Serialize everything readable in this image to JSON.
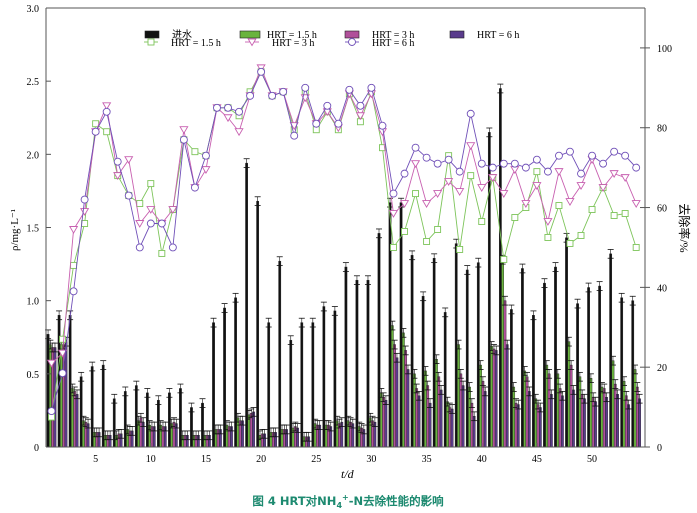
{
  "chart_data": {
    "type": "bar+line",
    "title": "",
    "caption": "图 4 HRT对NH4+-N去除性能的影响",
    "caption_parts": {
      "prefix": "图 4 HRT对NH",
      "sub": "4",
      "sup": "+",
      "suffix": "-N去除性能的影响"
    },
    "xlabel": "t/d",
    "ylabel": "ρ/mg·L⁻¹",
    "ylabel_right": "去除率/%",
    "xlim": [
      0.5,
      54.8
    ],
    "ylim": [
      0,
      3.0
    ],
    "ylim_right": [
      0,
      110
    ],
    "xticks": [
      5,
      10,
      15,
      20,
      25,
      30,
      35,
      40,
      45,
      50
    ],
    "yticks": [
      "0",
      "0.5",
      "1.0",
      "1.5",
      "2.0",
      "2.5",
      "3.0"
    ],
    "yticks_right": [
      "0",
      "20",
      "40",
      "60",
      "80",
      "100"
    ],
    "error_bar": 0.03,
    "legend_position": "top",
    "days": [
      1,
      2,
      3,
      4,
      5,
      6,
      7,
      8,
      9,
      10,
      11,
      12,
      13,
      14,
      15,
      16,
      17,
      18,
      19,
      20,
      21,
      22,
      23,
      24,
      25,
      26,
      27,
      28,
      29,
      30,
      31,
      32,
      33,
      34,
      35,
      36,
      37,
      38,
      39,
      40,
      41,
      42,
      43,
      44,
      45,
      46,
      47,
      48,
      49,
      50,
      51,
      52,
      53,
      54
    ],
    "bar_series": [
      {
        "name": "进水",
        "color": "#111111",
        "values": [
          0.77,
          0.9,
          0.9,
          0.48,
          0.55,
          0.56,
          0.33,
          0.38,
          0.42,
          0.37,
          0.32,
          0.37,
          0.4,
          0.27,
          0.3,
          0.85,
          0.95,
          1.02,
          1.94,
          1.68,
          0.85,
          1.27,
          0.73,
          0.85,
          0.85,
          0.96,
          0.93,
          1.23,
          1.14,
          1.14,
          1.46,
          1.67,
          1.67,
          1.31,
          1.03,
          1.29,
          0.92,
          1.39,
          1.21,
          1.26,
          2.15,
          2.45,
          0.94,
          1.22,
          0.9,
          1.12,
          1.23,
          1.43,
          0.98,
          1.09,
          1.1,
          1.32,
          1.02,
          1.0
        ]
      },
      {
        "name": "HRT = 1.5 h",
        "color": "#6ab43e",
        "values": [
          0.7,
          0.7,
          0.4,
          0.18,
          0.1,
          0.08,
          0.08,
          0.12,
          0.18,
          0.15,
          0.15,
          0.16,
          0.08,
          0.08,
          0.08,
          0.12,
          0.15,
          0.2,
          0.22,
          0.08,
          0.1,
          0.12,
          0.13,
          0.07,
          0.16,
          0.15,
          0.18,
          0.18,
          0.14,
          0.2,
          0.37,
          0.83,
          0.78,
          0.5,
          0.52,
          0.6,
          0.31,
          0.7,
          0.41,
          0.56,
          0.69,
          1.28,
          0.41,
          0.52,
          0.33,
          0.56,
          0.5,
          0.72,
          0.48,
          0.47,
          0.41,
          0.59,
          0.45,
          0.53
        ]
      },
      {
        "name": "HRT = 3 h",
        "color": "#b0509a",
        "values": [
          0.68,
          0.7,
          0.38,
          0.17,
          0.1,
          0.08,
          0.09,
          0.11,
          0.2,
          0.14,
          0.14,
          0.17,
          0.08,
          0.08,
          0.08,
          0.12,
          0.14,
          0.18,
          0.23,
          0.09,
          0.1,
          0.12,
          0.14,
          0.07,
          0.15,
          0.15,
          0.16,
          0.17,
          0.13,
          0.18,
          0.34,
          0.7,
          0.66,
          0.4,
          0.42,
          0.48,
          0.27,
          0.5,
          0.3,
          0.45,
          0.67,
          1.0,
          0.3,
          0.48,
          0.29,
          0.5,
          0.4,
          0.56,
          0.36,
          0.34,
          0.4,
          0.43,
          0.35,
          0.41
        ]
      },
      {
        "name": "HRT = 6 h",
        "color": "#5a3c8c",
        "values": [
          0.68,
          0.72,
          0.36,
          0.16,
          0.1,
          0.08,
          0.09,
          0.11,
          0.17,
          0.14,
          0.14,
          0.16,
          0.08,
          0.08,
          0.08,
          0.12,
          0.14,
          0.18,
          0.24,
          0.09,
          0.1,
          0.12,
          0.13,
          0.07,
          0.15,
          0.14,
          0.17,
          0.16,
          0.12,
          0.17,
          0.32,
          0.61,
          0.53,
          0.35,
          0.3,
          0.39,
          0.26,
          0.42,
          0.21,
          0.38,
          0.66,
          0.7,
          0.29,
          0.38,
          0.27,
          0.36,
          0.35,
          0.39,
          0.33,
          0.31,
          0.34,
          0.36,
          0.29,
          0.33
        ]
      }
    ],
    "line_series": [
      {
        "name": "HRT = 1.5 h",
        "color": "#7dc45a",
        "marker": "square",
        "values": [
          7.5,
          27,
          45.5,
          56,
          81,
          79,
          68,
          63,
          61,
          66,
          48.5,
          59.5,
          77,
          74,
          73,
          85,
          85,
          83,
          89,
          94,
          88,
          89,
          79.5,
          89,
          79.5,
          84,
          79.5,
          88.5,
          81.5,
          89,
          75,
          50,
          54,
          63.5,
          51.5,
          54.5,
          73,
          49.5,
          68,
          56.5,
          67.5,
          47,
          57.5,
          60,
          69,
          52.5,
          60.5,
          51,
          53,
          59.5,
          65,
          58,
          58.5,
          50
        ]
      },
      {
        "name": "HRT = 3 h",
        "color": "#c860b0",
        "marker": "triangle-down",
        "values": [
          21,
          23.5,
          54.5,
          59,
          79,
          85.5,
          68,
          72,
          56,
          59.5,
          56,
          59.5,
          79.5,
          65,
          69.5,
          85,
          82.5,
          79,
          88,
          95,
          88,
          89,
          80.5,
          87.5,
          81,
          84,
          80,
          88.5,
          83,
          88.5,
          79,
          58.5,
          61,
          71,
          61,
          63.5,
          66.5,
          64,
          75.5,
          65,
          67.5,
          63.5,
          69.5,
          61,
          65.5,
          56.5,
          69,
          61.5,
          65.5,
          72,
          65,
          68.5,
          67.5,
          61
        ]
      },
      {
        "name": "HRT = 6 h",
        "color": "#7050b8",
        "marker": "circle",
        "values": [
          9,
          18.5,
          39,
          62,
          79,
          84,
          71.5,
          63,
          50,
          56,
          56,
          50,
          77,
          65,
          73,
          85,
          85,
          84,
          88,
          94,
          88,
          89,
          78,
          90,
          81,
          85.5,
          81,
          89.5,
          85.5,
          90,
          80.5,
          63.5,
          68.5,
          75,
          72.5,
          71,
          72,
          69,
          83.5,
          71,
          70,
          71,
          71,
          70,
          72,
          69,
          73,
          74,
          68.5,
          73,
          71,
          74,
          73,
          70
        ]
      }
    ]
  }
}
